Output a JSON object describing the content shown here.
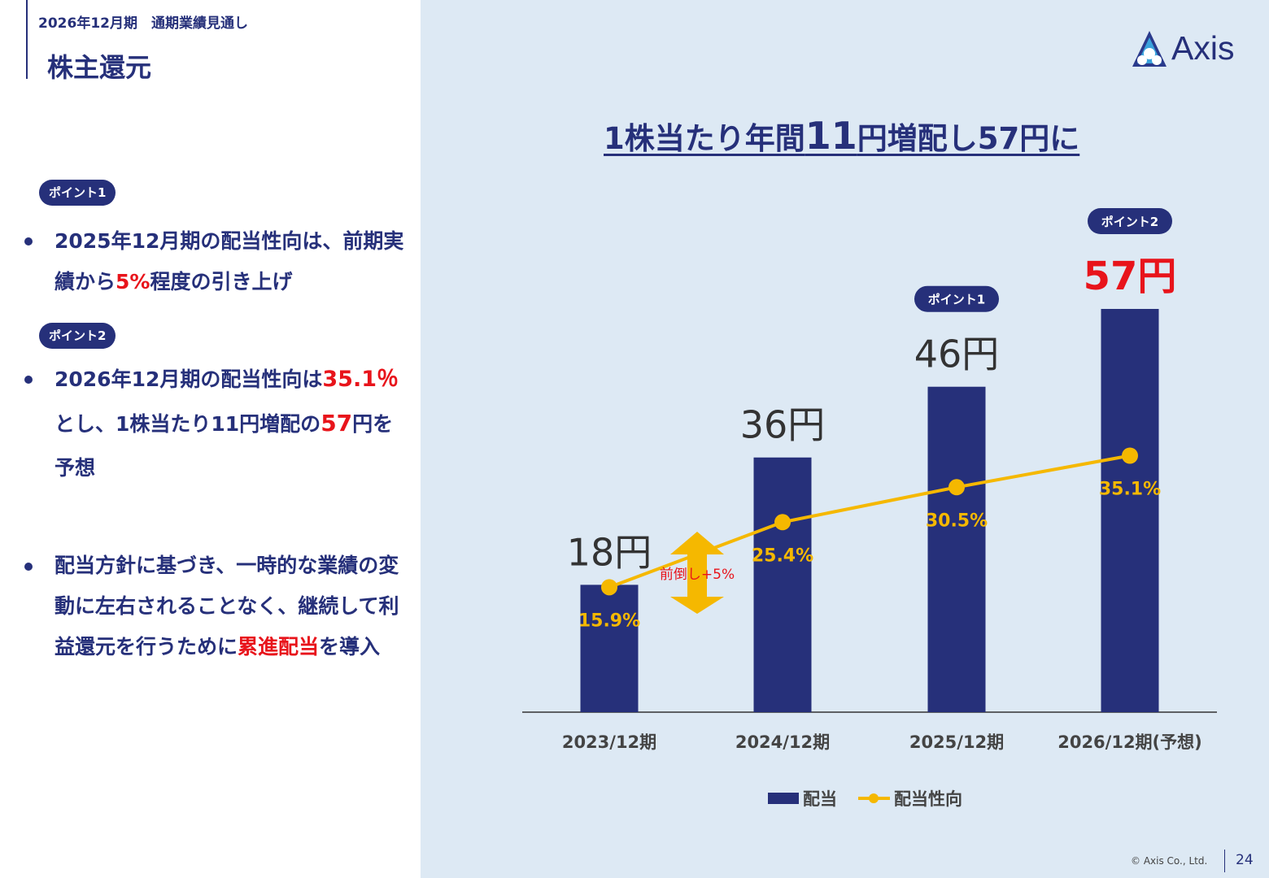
{
  "header": {
    "subtitle": "2026年12月期　通期業績見通し",
    "title": "株主還元"
  },
  "left_panel": {
    "point1_badge": "ポイント1",
    "point1_text": [
      "2025年12月期の配当性向は、前期実績から",
      "5%",
      "程度の引き上げ"
    ],
    "point2_badge": "ポイント2",
    "point2_text": [
      "2026年12月期の配当性向は",
      "35.1％",
      "とし、1株当たり11円増配の",
      "57",
      "円を予想"
    ],
    "point3_text": [
      "配当方針に基づき、一時的な業績の変動に左右されることなく、継続して利益還元を行うために",
      "累進配当",
      "を導入"
    ]
  },
  "headline": [
    "1株当たり年間",
    "11",
    "円増配し57円に"
  ],
  "logo_text": "Axis",
  "colors": {
    "navy": "#26307a",
    "gold": "#f5b800",
    "red": "#e8141b",
    "panel_bg": "#dde9f4"
  },
  "chart_data": {
    "type": "bar",
    "categories": [
      "2023/12期",
      "2024/12期",
      "2025/12期",
      "2026/12期(予想)"
    ],
    "series": [
      {
        "name": "配当",
        "type": "bar",
        "values": [
          18,
          36,
          46,
          57
        ],
        "labels": [
          "18円",
          "36円",
          "46円",
          "57円"
        ]
      },
      {
        "name": "配当性向",
        "type": "line",
        "values": [
          15.9,
          25.4,
          30.5,
          35.1
        ],
        "labels": [
          "15.9%",
          "25.4%",
          "30.5%",
          "35.1%"
        ]
      }
    ],
    "badges": [
      {
        "category": "2025/12期",
        "text": "ポイント1"
      },
      {
        "category": "2026/12期(予想)",
        "text": "ポイント2"
      }
    ],
    "annotation": "前倒し+5%",
    "legend": "bottom"
  },
  "footer": {
    "copyright": "© Axis Co., Ltd.",
    "page": "24"
  }
}
